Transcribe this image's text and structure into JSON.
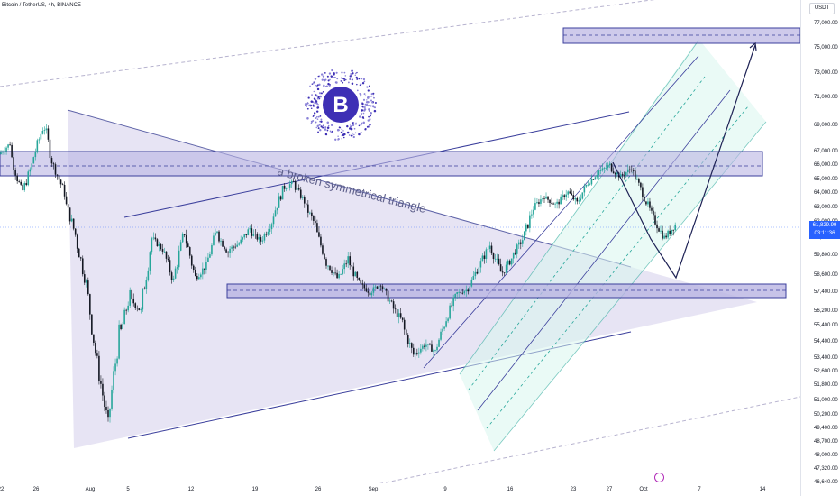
{
  "header": {
    "symbol": "Bitcoin / TetherUS, 4h, BINANCE"
  },
  "axis": {
    "currency": "USDT"
  },
  "last_price": {
    "value": "61,829.99",
    "countdown": "03:11:36"
  },
  "annotation": "a broken symmetrical triangle",
  "logo": {
    "glyph": "B",
    "color": "#3d2fb5"
  },
  "colors": {
    "up": "#26a69a",
    "down": "#131722",
    "triangle_fill": "#c9c3e6",
    "zone_fill": "#b9b4e2",
    "zone_stroke": "#3b3f9c",
    "channel_fill": "#d9f5ee",
    "accent": "#2962ff"
  },
  "chart_data": {
    "type": "candlestick",
    "symbol": "BTC/USDT",
    "interval": "4h",
    "y_ticks": [
      77000,
      75000,
      73000,
      71000,
      69000,
      67000,
      66000,
      65000,
      64000,
      63000,
      62000,
      61000,
      59800,
      58600,
      57400,
      56200,
      55400,
      54400,
      53400,
      52600,
      51800,
      51000,
      50200,
      49400,
      48700,
      48000,
      47320,
      46640
    ],
    "y_tick_labels": [
      "77,000.00",
      "75,000.00",
      "73,000.00",
      "71,000.00",
      "69,000.00",
      "67,000.00",
      "66,000.00",
      "65,000.00",
      "64,000.00",
      "63,000.00",
      "62,000.00",
      "61,000.00",
      "59,800.00",
      "58,600.00",
      "57,400.00",
      "56,200.00",
      "55,400.00",
      "54,400.00",
      "53,400.00",
      "52,600.00",
      "51,800.00",
      "51,000.00",
      "50,200.00",
      "49,400.00",
      "48,700.00",
      "48,000.00",
      "47,320.00",
      "46,640.00"
    ],
    "x_ticks": [
      "22",
      "26",
      "Aug",
      "5",
      "12",
      "19",
      "26",
      "Sep",
      "9",
      "16",
      "23",
      "27",
      "Oct",
      "7",
      "14"
    ],
    "price_path": [
      [
        66800,
        67600
      ],
      [
        67000,
        64200
      ],
      [
        63800,
        66000
      ],
      [
        66200,
        68800
      ],
      [
        69500,
        65800
      ],
      [
        66000,
        64000
      ],
      [
        63500,
        61200
      ],
      [
        61000,
        58000
      ],
      [
        57800,
        53000
      ],
      [
        53000,
        49600
      ],
      [
        49800,
        54800
      ],
      [
        54600,
        57200
      ],
      [
        57000,
        56200
      ],
      [
        56400,
        61000
      ],
      [
        61000,
        60200
      ],
      [
        60200,
        58200
      ],
      [
        58400,
        61400
      ],
      [
        61200,
        58400
      ],
      [
        58400,
        59200
      ],
      [
        59200,
        61600
      ],
      [
        61200,
        60000
      ],
      [
        60200,
        60600
      ],
      [
        60600,
        61600
      ],
      [
        61400,
        60800
      ],
      [
        60800,
        62000
      ],
      [
        62200,
        64200
      ],
      [
        64300,
        64800
      ],
      [
        64600,
        63400
      ],
      [
        63200,
        61800
      ],
      [
        61600,
        59400
      ],
      [
        59400,
        58400
      ],
      [
        58200,
        59600
      ],
      [
        59500,
        58000
      ],
      [
        58000,
        57400
      ],
      [
        57400,
        58000
      ],
      [
        57900,
        56600
      ],
      [
        56500,
        55600
      ],
      [
        55400,
        53600
      ],
      [
        53600,
        54200
      ],
      [
        54300,
        53800
      ],
      [
        53900,
        55800
      ],
      [
        55800,
        57300
      ],
      [
        57300,
        57600
      ],
      [
        57700,
        59200
      ],
      [
        59100,
        60500
      ],
      [
        60400,
        58800
      ],
      [
        58600,
        59600
      ],
      [
        59700,
        60900
      ],
      [
        60800,
        63000
      ],
      [
        63000,
        63800
      ],
      [
        63700,
        63200
      ],
      [
        63100,
        64000
      ],
      [
        64200,
        63300
      ],
      [
        63300,
        64800
      ],
      [
        64700,
        65600
      ],
      [
        65500,
        66000
      ],
      [
        65800,
        65200
      ],
      [
        65200,
        65800
      ],
      [
        65700,
        64000
      ],
      [
        64000,
        62200
      ],
      [
        62200,
        61000
      ],
      [
        61000,
        61830
      ]
    ],
    "last_price": 61829.99,
    "zones": [
      {
        "from": 75600,
        "to": 76500
      },
      {
        "from": 65200,
        "to": 67000
      },
      {
        "from": 57300,
        "to": 57900
      }
    ],
    "projection": [
      61000,
      58900,
      75600
    ],
    "grid": false
  }
}
